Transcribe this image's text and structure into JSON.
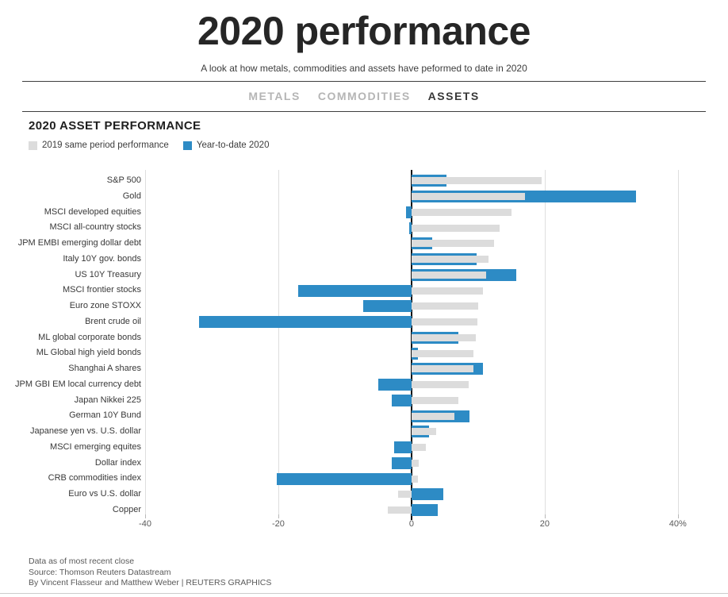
{
  "header": {
    "title": "2020 performance",
    "subtitle": "A look at how metals, commodities and assets have peformed to date in 2020"
  },
  "tabs": [
    {
      "label": "METALS",
      "active": false
    },
    {
      "label": "COMMODITIES",
      "active": false
    },
    {
      "label": "ASSETS",
      "active": true
    }
  ],
  "section": {
    "title": "2020 ASSET PERFORMANCE"
  },
  "legend": [
    {
      "label": "2019 same period performance",
      "color": "#dcdcdc"
    },
    {
      "label": "Year-to-date 2020",
      "color": "#2d8bc5"
    }
  ],
  "chart_data": {
    "type": "bar",
    "orientation": "horizontal",
    "title": "2020 ASSET PERFORMANCE",
    "categories": [
      "S&P 500",
      "Gold",
      "MSCI developed equities",
      "MSCI all-country stocks",
      "JPM EMBI emerging dollar debt",
      "Italy 10Y gov. bonds",
      "US 10Y Treasury",
      "MSCI frontier stocks",
      "Euro zone STOXX",
      "Brent crude oil",
      "ML global corporate bonds",
      "ML Global high yield bonds",
      "Shanghai A shares",
      "JPM GBI EM local currency debt",
      "Japan Nikkei 225",
      "German 10Y Bund",
      "Japanese yen vs. U.S. dollar",
      "MSCI emerging equites",
      "Dollar index",
      "CRB commodities index",
      "Euro vs U.S. dollar",
      "Copper"
    ],
    "series": [
      {
        "name": "2019 same period performance",
        "color": "#dcdcdc",
        "values": [
          19.6,
          17.1,
          15.0,
          13.2,
          12.4,
          11.6,
          11.2,
          10.7,
          10.0,
          9.9,
          9.6,
          9.3,
          9.3,
          8.6,
          7.0,
          6.5,
          3.7,
          2.2,
          1.1,
          1.0,
          -2.0,
          -3.6
        ]
      },
      {
        "name": "Year-to-date 2020",
        "color": "#2d8bc5",
        "values": [
          5.2,
          33.7,
          -0.8,
          -0.3,
          3.1,
          9.8,
          15.7,
          -17.0,
          -7.2,
          -31.9,
          7.0,
          1.0,
          10.7,
          -5.0,
          -3.0,
          8.7,
          2.6,
          -2.6,
          -3.0,
          -20.2,
          4.8,
          3.9
        ]
      }
    ],
    "xlim": [
      -40,
      43
    ],
    "xticks": [
      -40,
      -20,
      0,
      20,
      40
    ],
    "xtick_labels": [
      "-40",
      "-20",
      "0",
      "20",
      "40%"
    ],
    "unit": "%",
    "grid": true,
    "legend_position": "top-left"
  },
  "footer": {
    "line1": "Data as of most recent close",
    "line2": "Source: Thomson Reuters Datastream",
    "line3": "By Vincent Flasseur and Matthew Weber | REUTERS GRAPHICS"
  }
}
